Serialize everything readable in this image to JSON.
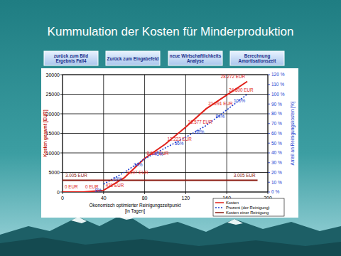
{
  "buttons": [
    [
      "zurück zum Bild",
      "Ergebnis Fall4"
    ],
    [
      "Zurück zum Eingabefeld"
    ],
    [
      "neue Wirtschaftlichkeits",
      "Analyse"
    ],
    [
      "Berechnung",
      "Amortisationszeit"
    ]
  ],
  "chart_data": {
    "type": "line",
    "title": "Kummulation der Kosten für Minderproduktion",
    "x_label": "Ökonomisch optimierter Reinigungszeitpunkt [in Tagen]",
    "y_label": "Kosten gesamt [EUR]",
    "y2_label": "Anteil an Reinigungskosten [%]",
    "xlim": [
      0,
      200
    ],
    "xticks": [
      0,
      40,
      80,
      120,
      160,
      200
    ],
    "ylim": [
      0,
      30000
    ],
    "yticks": [
      0,
      5000,
      10000,
      15000,
      20000,
      25000,
      30000
    ],
    "y2lim": [
      0,
      120
    ],
    "y2ticks": [
      {
        "value": 0,
        "label": "0 %"
      },
      {
        "value": 10,
        "label": "10 %"
      },
      {
        "value": 20,
        "label": "20 %"
      },
      {
        "value": 30,
        "label": "30 %"
      },
      {
        "value": 40,
        "label": "40 %"
      },
      {
        "value": 50,
        "label": "50 %"
      },
      {
        "value": 60,
        "label": "60 %"
      },
      {
        "value": 70,
        "label": "70 %"
      },
      {
        "value": 80,
        "label": "80 %"
      },
      {
        "value": 90,
        "label": "90 %"
      },
      {
        "value": 100,
        "label": "100 %"
      },
      {
        "value": 110,
        "label": "110 %"
      },
      {
        "value": 120,
        "label": "120 %"
      }
    ],
    "grid": true,
    "legend": "lower right",
    "data_labels": true,
    "series": [
      {
        "name": "Kosten",
        "color": "#e0201a",
        "line_style": "solid",
        "x": [
          0,
          20,
          40,
          60,
          80,
          100,
          120,
          140,
          160,
          180
        ],
        "values": [
          0,
          0,
          431,
          3597,
          8597,
          12223,
          16577,
          21291,
          24800,
          28272
        ],
        "value_labels": [
          "0 EUR",
          "0 EUR",
          "431 EUR",
          "3.597 EUR",
          "8.597 EUR",
          "12.223 EUR",
          "16.577 EUR",
          "21.291 EUR",
          "24.800 EUR",
          "28.272 EUR"
        ]
      },
      {
        "name": "Prozent (der Reinigung)",
        "color": "#2040d0",
        "line_style": "dotted",
        "axis": "y2",
        "x": [
          40,
          60,
          80,
          100,
          120,
          140,
          160,
          180
        ],
        "values": [
          8,
          20,
          34,
          45,
          56,
          68,
          84,
          100
        ],
        "value_labels": [
          "8%",
          "20%",
          "34%",
          "45%",
          "56%",
          "68%",
          "84%",
          "100%"
        ]
      },
      {
        "name": "Kosten einer Reinigung",
        "color": "#8b1a10",
        "line_style": "solid",
        "x": [
          0,
          190
        ],
        "values": [
          3005,
          3005
        ],
        "value_labels": [
          "3.005 EUR",
          "3.005 EUR"
        ]
      }
    ]
  }
}
